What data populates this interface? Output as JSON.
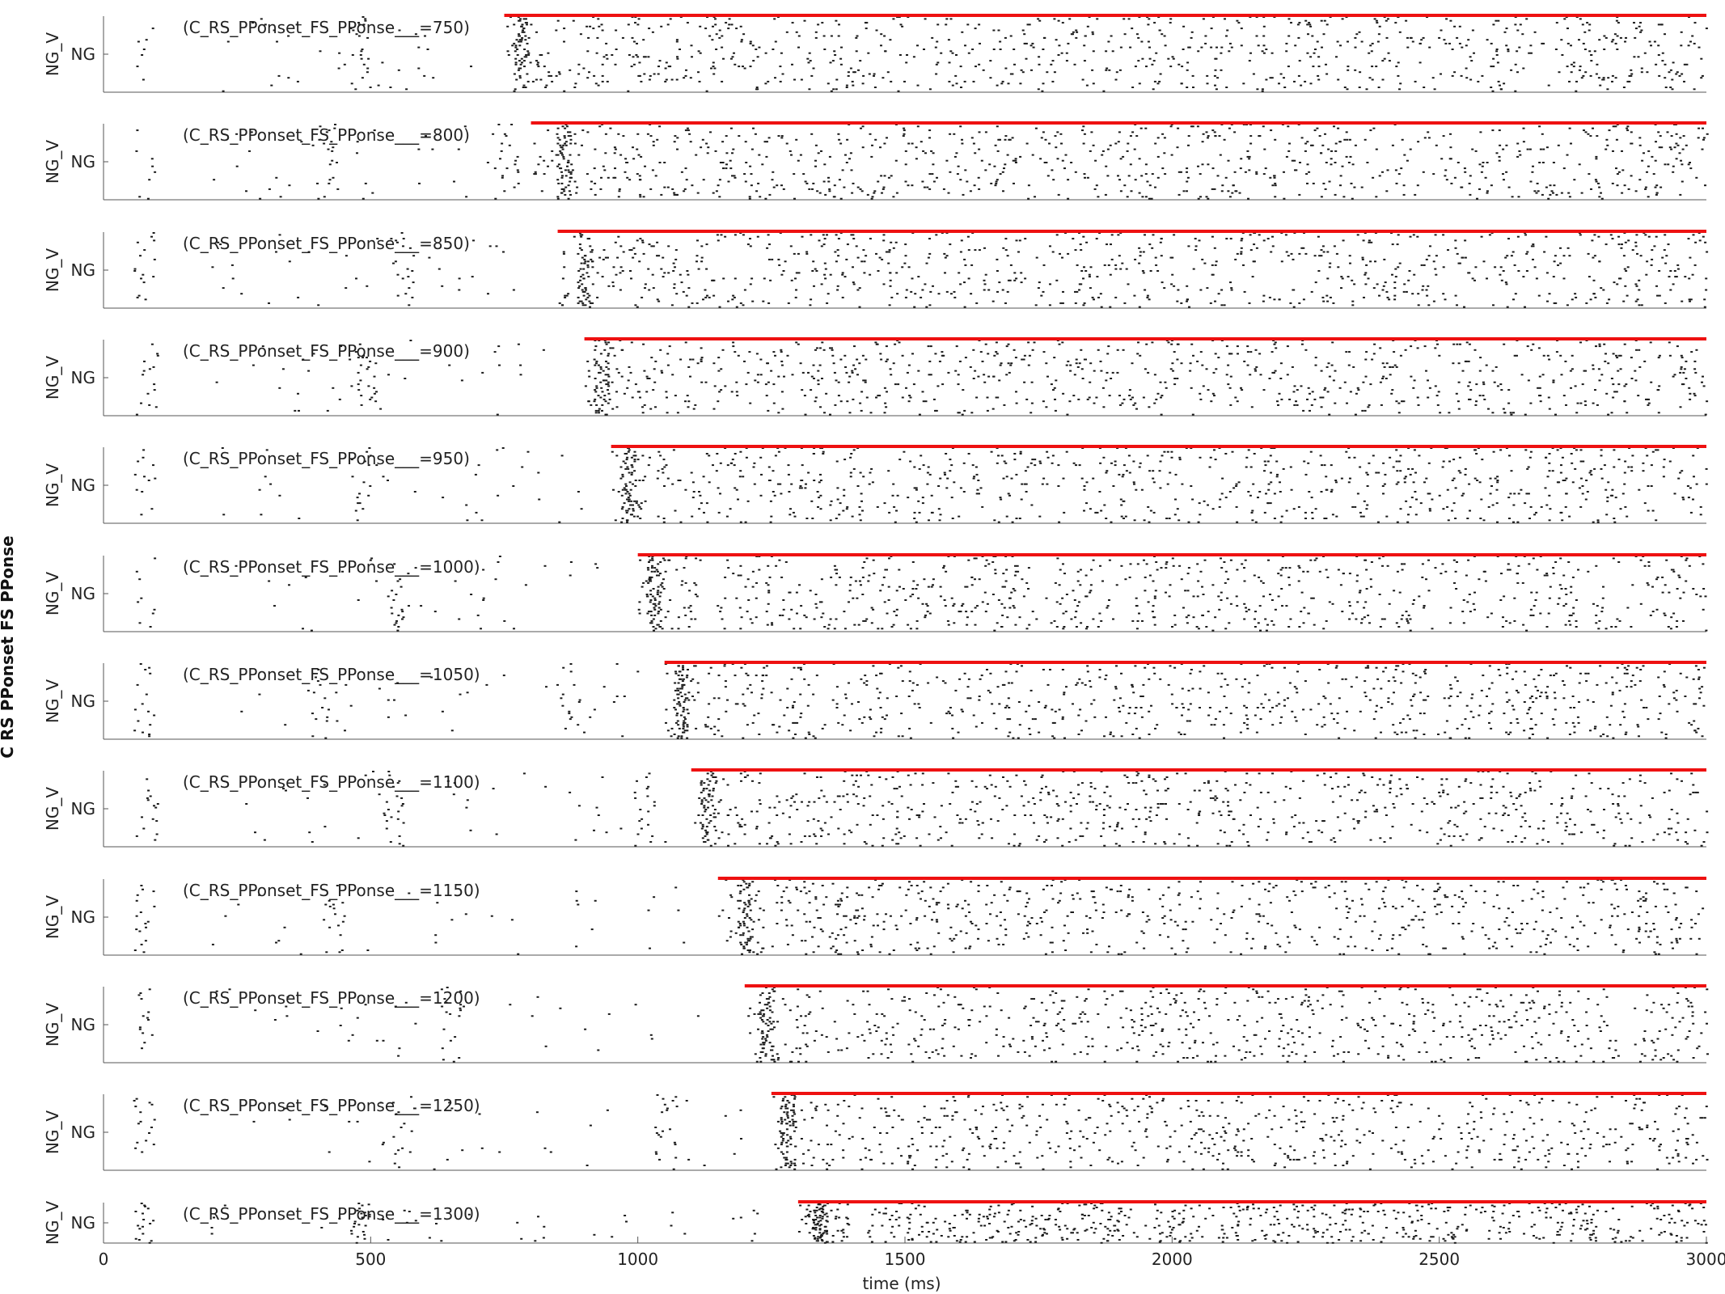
{
  "chart_data": {
    "type": "scatter",
    "subtype": "raster",
    "super_ylabel": "C RS PPonset FS PPonse",
    "xlabel": "time (ms)",
    "xlim": [
      0,
      3000
    ],
    "x_ticks": [
      0,
      500,
      1000,
      1500,
      2000,
      2500,
      3000
    ],
    "y_tick_label": "NG",
    "y_axis_label": "NG_V",
    "stim_color": "#ee1111",
    "spike_color": "#1a1a1a",
    "stim_end_ms": 3000,
    "panels": [
      {
        "label": "(C_RS_PPonset_FS_PPonse___=750)",
        "onset_ms": 750,
        "bursts_ms": [
          75,
          480,
          780
        ]
      },
      {
        "label": "(C_RS_PPonset_FS_PPonse___=800)",
        "onset_ms": 800,
        "bursts_ms": [
          75,
          420,
          760,
          860
        ]
      },
      {
        "label": "(C_RS_PPonset_FS_PPonse___=850)",
        "onset_ms": 850,
        "bursts_ms": [
          75,
          560,
          900
        ]
      },
      {
        "label": "(C_RS_PPonset_FS_PPonse___=900)",
        "onset_ms": 900,
        "bursts_ms": [
          80,
          490,
          930
        ]
      },
      {
        "label": "(C_RS_PPonset_FS_PPonse___=950)",
        "onset_ms": 950,
        "bursts_ms": [
          75,
          480,
          980
        ]
      },
      {
        "label": "(C_RS_PPonset_FS_PPonse___=1000)",
        "onset_ms": 1000,
        "bursts_ms": [
          75,
          550,
          1030
        ]
      },
      {
        "label": "(C_RS_PPonset_FS_PPonse___=1050)",
        "onset_ms": 1050,
        "bursts_ms": [
          75,
          400,
          870,
          1080
        ]
      },
      {
        "label": "(C_RS_PPonset_FS_PPonse___=1100)",
        "onset_ms": 1100,
        "bursts_ms": [
          80,
          540,
          1010,
          1130
        ]
      },
      {
        "label": "(C_RS_PPonset_FS_PPonse___=1150)",
        "onset_ms": 1150,
        "bursts_ms": [
          75,
          430,
          1200
        ]
      },
      {
        "label": "(C_RS_PPonset_FS_PPonse___=1200)",
        "onset_ms": 1200,
        "bursts_ms": [
          75,
          650,
          1240
        ]
      },
      {
        "label": "(C_RS_PPonset_FS_PPonse___=1250)",
        "onset_ms": 1250,
        "bursts_ms": [
          75,
          560,
          1050,
          1280
        ]
      },
      {
        "label": "(C_RS_PPonset_FS_PPonse___=1300)",
        "onset_ms": 1300,
        "bursts_ms": [
          75,
          480,
          1340
        ]
      }
    ]
  }
}
